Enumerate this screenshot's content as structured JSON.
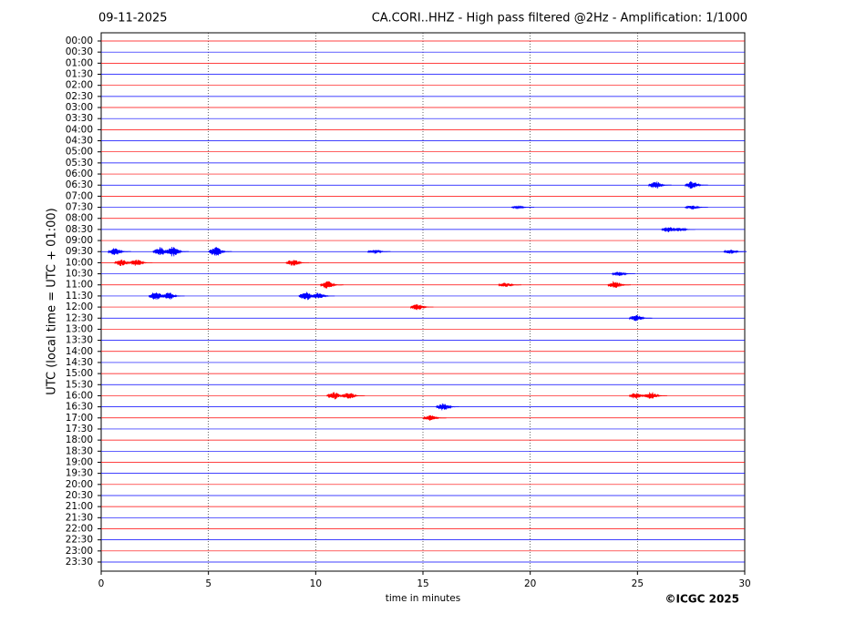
{
  "chart_data": {
    "type": "helicorder",
    "date": "09-11-2025",
    "title": "CA.CORI..HHZ - High pass filtered @2Hz - Amplification: 1/1000",
    "x_label": "time in minutes",
    "y_label": "UTC (local time = UTC + 01:00)",
    "copyright": "©ICGC 2025",
    "rows": [
      "00:00",
      "00:30",
      "01:00",
      "01:30",
      "02:00",
      "02:30",
      "03:00",
      "03:30",
      "04:00",
      "04:30",
      "05:00",
      "05:30",
      "06:00",
      "06:30",
      "07:00",
      "07:30",
      "08:00",
      "08:30",
      "09:00",
      "09:30",
      "10:00",
      "10:30",
      "11:00",
      "11:30",
      "12:00",
      "12:30",
      "13:00",
      "13:30",
      "14:00",
      "14:30",
      "15:00",
      "15:30",
      "16:00",
      "16:30",
      "17:00",
      "17:30",
      "18:00",
      "18:30",
      "19:00",
      "19:30",
      "20:00",
      "20:30",
      "21:00",
      "21:30",
      "22:00",
      "22:30",
      "23:00",
      "23:30"
    ],
    "row_colors": [
      "#ff0000",
      "#0000ff"
    ],
    "xlim": [
      0,
      30
    ],
    "xticks": [
      0,
      5,
      10,
      15,
      20,
      25,
      30
    ],
    "grid": true,
    "events": [
      {
        "row": 13,
        "x": 25.9,
        "amp": 0.35
      },
      {
        "row": 13,
        "x": 27.6,
        "amp": 0.35
      },
      {
        "row": 15,
        "x": 27.6,
        "amp": 0.2
      },
      {
        "row": 15,
        "x": 19.5,
        "amp": 0.1
      },
      {
        "row": 17,
        "x": 26.5,
        "amp": 0.25
      },
      {
        "row": 17,
        "x": 27.0,
        "amp": 0.2
      },
      {
        "row": 19,
        "x": 0.7,
        "amp": 0.35
      },
      {
        "row": 19,
        "x": 2.8,
        "amp": 0.4
      },
      {
        "row": 19,
        "x": 3.4,
        "amp": 0.45
      },
      {
        "row": 19,
        "x": 5.4,
        "amp": 0.45
      },
      {
        "row": 19,
        "x": 12.8,
        "amp": 0.2
      },
      {
        "row": 19,
        "x": 29.4,
        "amp": 0.2
      },
      {
        "row": 20,
        "x": 1.0,
        "amp": 0.3
      },
      {
        "row": 20,
        "x": 1.7,
        "amp": 0.3
      },
      {
        "row": 20,
        "x": 9.0,
        "amp": 0.3
      },
      {
        "row": 21,
        "x": 24.2,
        "amp": 0.2
      },
      {
        "row": 22,
        "x": 10.6,
        "amp": 0.35
      },
      {
        "row": 22,
        "x": 18.9,
        "amp": 0.2
      },
      {
        "row": 22,
        "x": 24.0,
        "amp": 0.35
      },
      {
        "row": 23,
        "x": 2.6,
        "amp": 0.4
      },
      {
        "row": 23,
        "x": 3.2,
        "amp": 0.35
      },
      {
        "row": 23,
        "x": 9.6,
        "amp": 0.4
      },
      {
        "row": 23,
        "x": 10.2,
        "amp": 0.3
      },
      {
        "row": 24,
        "x": 14.8,
        "amp": 0.3
      },
      {
        "row": 25,
        "x": 25.0,
        "amp": 0.3
      },
      {
        "row": 32,
        "x": 10.9,
        "amp": 0.35
      },
      {
        "row": 32,
        "x": 11.6,
        "amp": 0.3
      },
      {
        "row": 32,
        "x": 25.0,
        "amp": 0.3
      },
      {
        "row": 32,
        "x": 25.7,
        "amp": 0.35
      },
      {
        "row": 33,
        "x": 16.0,
        "amp": 0.35
      },
      {
        "row": 34,
        "x": 15.4,
        "amp": 0.25
      }
    ]
  }
}
